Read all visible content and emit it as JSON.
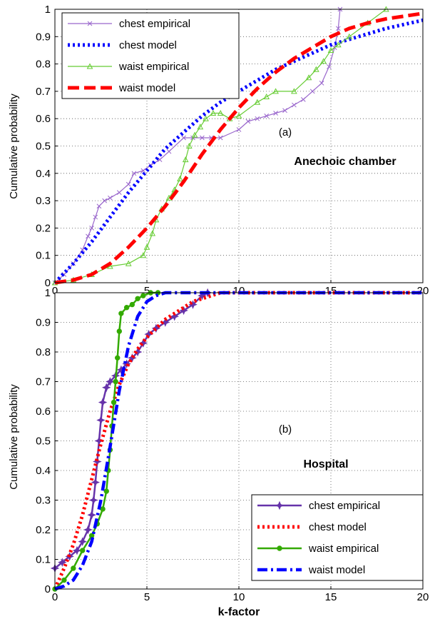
{
  "figure": {
    "xlabel": "k-factor"
  },
  "colors": {
    "chest_emp_a": "#9966cc",
    "chest_model_a": "#0000ff",
    "waist_emp_a": "#66cc33",
    "waist_model_a": "#ff0000",
    "chest_emp_b": "#6633aa",
    "chest_model_b": "#ff0000",
    "waist_emp_b": "#33aa00",
    "waist_model_b": "#0000ff"
  },
  "chart_data": [
    {
      "type": "line",
      "panel_label": "(a)",
      "annotation": "Anechoic chamber",
      "ylabel": "Cumulative probability",
      "xlabel": "",
      "xlim": [
        0,
        20
      ],
      "ylim": [
        0,
        1
      ],
      "xticks": [
        "0",
        "5",
        "10",
        "15",
        "20"
      ],
      "yticks": [
        "0",
        "0.1",
        "0.2",
        "0.3",
        "0.4",
        "0.5",
        "0.6",
        "0.7",
        "0.8",
        "0.9",
        "1"
      ],
      "grid": true,
      "legend_position": "top-left",
      "series": [
        {
          "name": "chest empirical",
          "color": "#9966cc",
          "style": "solid-x",
          "points": [
            [
              0,
              0
            ],
            [
              0.5,
              0.03
            ],
            [
              1,
              0.07
            ],
            [
              1.5,
              0.12
            ],
            [
              1.8,
              0.17
            ],
            [
              2,
              0.2
            ],
            [
              2.2,
              0.24
            ],
            [
              2.4,
              0.28
            ],
            [
              2.7,
              0.3
            ],
            [
              3,
              0.31
            ],
            [
              3.5,
              0.33
            ],
            [
              4,
              0.36
            ],
            [
              4.3,
              0.4
            ],
            [
              4.8,
              0.41
            ],
            [
              5.2,
              0.43
            ],
            [
              5.7,
              0.45
            ],
            [
              6.2,
              0.48
            ],
            [
              7,
              0.53
            ],
            [
              7.5,
              0.53
            ],
            [
              8,
              0.53
            ],
            [
              8.5,
              0.53
            ],
            [
              9,
              0.53
            ],
            [
              10,
              0.56
            ],
            [
              10.5,
              0.59
            ],
            [
              11,
              0.6
            ],
            [
              11.5,
              0.61
            ],
            [
              12,
              0.62
            ],
            [
              12.5,
              0.63
            ],
            [
              13,
              0.65
            ],
            [
              13.5,
              0.67
            ],
            [
              14,
              0.7
            ],
            [
              14.5,
              0.73
            ],
            [
              14.9,
              0.79
            ],
            [
              15.2,
              0.86
            ],
            [
              15.4,
              0.93
            ],
            [
              15.5,
              1.0
            ]
          ]
        },
        {
          "name": "chest  model",
          "color": "#0000ff",
          "style": "dotted",
          "points": [
            [
              0,
              0
            ],
            [
              1,
              0.07
            ],
            [
              2,
              0.15
            ],
            [
              3,
              0.24
            ],
            [
              4,
              0.33
            ],
            [
              5,
              0.41
            ],
            [
              6,
              0.49
            ],
            [
              7,
              0.55
            ],
            [
              8,
              0.61
            ],
            [
              9,
              0.66
            ],
            [
              10,
              0.7
            ],
            [
              11,
              0.74
            ],
            [
              12,
              0.78
            ],
            [
              13,
              0.81
            ],
            [
              14,
              0.84
            ],
            [
              15,
              0.87
            ],
            [
              16,
              0.89
            ],
            [
              17,
              0.91
            ],
            [
              18,
              0.93
            ],
            [
              19,
              0.945
            ],
            [
              20,
              0.96
            ]
          ]
        },
        {
          "name": "waist empirical",
          "color": "#66cc33",
          "style": "solid-triangle",
          "points": [
            [
              0,
              0
            ],
            [
              1,
              0.01
            ],
            [
              2,
              0.03
            ],
            [
              3,
              0.06
            ],
            [
              4,
              0.07
            ],
            [
              4.8,
              0.1
            ],
            [
              5,
              0.13
            ],
            [
              5.3,
              0.18
            ],
            [
              5.5,
              0.23
            ],
            [
              5.8,
              0.27
            ],
            [
              6.2,
              0.31
            ],
            [
              6.5,
              0.34
            ],
            [
              6.8,
              0.38
            ],
            [
              7.1,
              0.45
            ],
            [
              7.3,
              0.5
            ],
            [
              7.6,
              0.54
            ],
            [
              7.9,
              0.57
            ],
            [
              8.2,
              0.6
            ],
            [
              8.6,
              0.62
            ],
            [
              9,
              0.62
            ],
            [
              9.5,
              0.6
            ],
            [
              10,
              0.61
            ],
            [
              11,
              0.66
            ],
            [
              11.5,
              0.68
            ],
            [
              12,
              0.7
            ],
            [
              13,
              0.7
            ],
            [
              13.8,
              0.75
            ],
            [
              14.2,
              0.78
            ],
            [
              14.6,
              0.81
            ],
            [
              15,
              0.85
            ],
            [
              15.4,
              0.87
            ],
            [
              16,
              0.9
            ],
            [
              17,
              0.95
            ],
            [
              18,
              1.0
            ]
          ]
        },
        {
          "name": "waist model",
          "color": "#ff0000",
          "style": "dashed",
          "points": [
            [
              0,
              0
            ],
            [
              1,
              0.01
            ],
            [
              2,
              0.03
            ],
            [
              3,
              0.07
            ],
            [
              4,
              0.13
            ],
            [
              5,
              0.2
            ],
            [
              6,
              0.28
            ],
            [
              7,
              0.37
            ],
            [
              8,
              0.47
            ],
            [
              9,
              0.56
            ],
            [
              10,
              0.64
            ],
            [
              11,
              0.71
            ],
            [
              12,
              0.77
            ],
            [
              13,
              0.82
            ],
            [
              14,
              0.86
            ],
            [
              15,
              0.9
            ],
            [
              16,
              0.93
            ],
            [
              17,
              0.95
            ],
            [
              18,
              0.965
            ],
            [
              19,
              0.975
            ],
            [
              20,
              0.985
            ]
          ]
        }
      ]
    },
    {
      "type": "line",
      "panel_label": "(b)",
      "annotation": "Hospital",
      "ylabel": "Cumulative probability",
      "xlabel": "k-factor",
      "xlim": [
        0,
        20
      ],
      "ylim": [
        0,
        1
      ],
      "xticks": [
        "0",
        "5",
        "10",
        "15",
        "20"
      ],
      "yticks": [
        "0",
        "0.1",
        "0.2",
        "0.3",
        "0.4",
        "0.5",
        "0.6",
        "0.7",
        "0.8",
        "0.9",
        "1"
      ],
      "grid": true,
      "legend_position": "bottom-right",
      "series": [
        {
          "name": "chest empirical",
          "color": "#6633aa",
          "style": "solid-star",
          "points": [
            [
              0,
              0.07
            ],
            [
              0.4,
              0.09
            ],
            [
              0.8,
              0.11
            ],
            [
              1.2,
              0.13
            ],
            [
              1.5,
              0.16
            ],
            [
              1.8,
              0.2
            ],
            [
              2,
              0.25
            ],
            [
              2.1,
              0.3
            ],
            [
              2.2,
              0.36
            ],
            [
              2.3,
              0.43
            ],
            [
              2.4,
              0.5
            ],
            [
              2.5,
              0.57
            ],
            [
              2.6,
              0.63
            ],
            [
              2.8,
              0.68
            ],
            [
              3,
              0.7
            ],
            [
              3.3,
              0.72
            ],
            [
              3.6,
              0.74
            ],
            [
              3.9,
              0.76
            ],
            [
              4.2,
              0.78
            ],
            [
              4.5,
              0.8
            ],
            [
              4.8,
              0.83
            ],
            [
              5.1,
              0.86
            ],
            [
              5.5,
              0.88
            ],
            [
              6,
              0.9
            ],
            [
              6.5,
              0.92
            ],
            [
              7,
              0.94
            ],
            [
              7.5,
              0.96
            ],
            [
              8,
              0.99
            ],
            [
              8.3,
              1.0
            ]
          ]
        },
        {
          "name": "chest model",
          "color": "#ff0000",
          "style": "dotted",
          "points": [
            [
              0,
              0
            ],
            [
              0.5,
              0.07
            ],
            [
              1,
              0.15
            ],
            [
              1.5,
              0.25
            ],
            [
              2,
              0.37
            ],
            [
              2.5,
              0.49
            ],
            [
              3,
              0.6
            ],
            [
              3.5,
              0.69
            ],
            [
              4,
              0.76
            ],
            [
              4.5,
              0.81
            ],
            [
              5,
              0.85
            ],
            [
              5.5,
              0.88
            ],
            [
              6,
              0.91
            ],
            [
              6.5,
              0.93
            ],
            [
              7,
              0.95
            ],
            [
              7.5,
              0.97
            ],
            [
              8,
              0.98
            ],
            [
              8.5,
              0.99
            ],
            [
              9,
              1.0
            ],
            [
              20,
              1.0
            ]
          ]
        },
        {
          "name": "waist empirical",
          "color": "#33aa00",
          "style": "solid-dot",
          "points": [
            [
              0,
              0.0
            ],
            [
              0.5,
              0.03
            ],
            [
              1,
              0.07
            ],
            [
              1.5,
              0.13
            ],
            [
              2,
              0.18
            ],
            [
              2.3,
              0.22
            ],
            [
              2.6,
              0.27
            ],
            [
              2.8,
              0.33
            ],
            [
              2.9,
              0.4
            ],
            [
              3,
              0.47
            ],
            [
              3.1,
              0.55
            ],
            [
              3.2,
              0.63
            ],
            [
              3.3,
              0.7
            ],
            [
              3.4,
              0.78
            ],
            [
              3.5,
              0.87
            ],
            [
              3.6,
              0.93
            ],
            [
              3.9,
              0.95
            ],
            [
              4.2,
              0.96
            ],
            [
              4.5,
              0.98
            ],
            [
              4.8,
              0.99
            ],
            [
              5.2,
              1.0
            ],
            [
              5.6,
              1.0
            ]
          ]
        },
        {
          "name": "waist model",
          "color": "#0000ff",
          "style": "dashdot",
          "points": [
            [
              0,
              0
            ],
            [
              0.5,
              0.01
            ],
            [
              1,
              0.03
            ],
            [
              1.5,
              0.08
            ],
            [
              2,
              0.16
            ],
            [
              2.5,
              0.3
            ],
            [
              3,
              0.48
            ],
            [
              3.5,
              0.67
            ],
            [
              4,
              0.82
            ],
            [
              4.5,
              0.92
            ],
            [
              5,
              0.97
            ],
            [
              5.5,
              0.99
            ],
            [
              6,
              1.0
            ],
            [
              20,
              1.0
            ]
          ]
        }
      ]
    }
  ]
}
